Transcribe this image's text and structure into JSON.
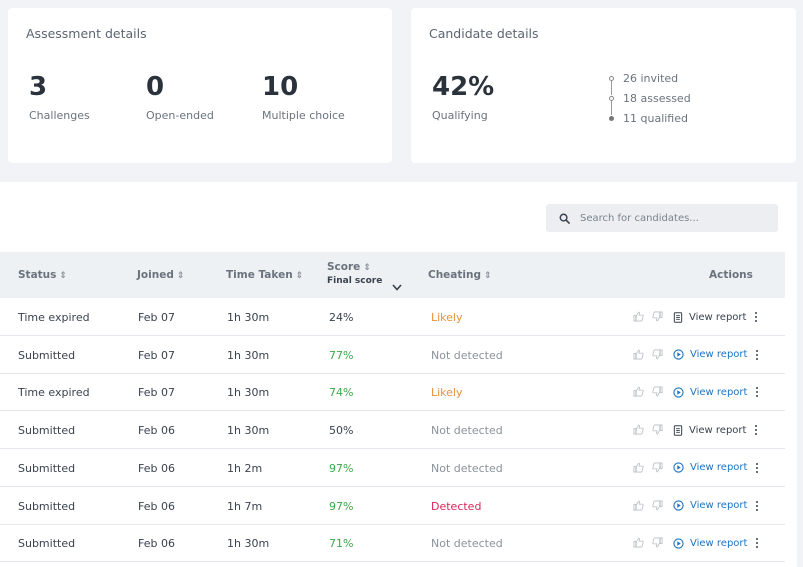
{
  "assessment": {
    "title": "Assessment details",
    "stats": [
      {
        "value": "3",
        "label": "Challenges"
      },
      {
        "value": "0",
        "label": "Open-ended"
      },
      {
        "value": "10",
        "label": "Multiple choice"
      }
    ]
  },
  "candidate": {
    "title": "Candidate details",
    "percent": "42%",
    "percent_label": "Qualifying",
    "funnel": [
      "26 invited",
      "18 assessed",
      "11 qualified"
    ]
  },
  "search": {
    "placeholder": "Search for candidates..."
  },
  "table": {
    "headers": {
      "status": "Status",
      "joined": "Joined",
      "time_taken": "Time Taken",
      "score": "Score",
      "score_sub": "Final score",
      "cheating": "Cheating",
      "actions": "Actions"
    },
    "rows": [
      {
        "status": "Time expired",
        "joined": "Feb 07",
        "time": "1h 30m",
        "score": "24%",
        "cheating": "Likely",
        "report": "View report",
        "report_icon": "document-icon"
      },
      {
        "status": "Submitted",
        "joined": "Feb 07",
        "time": "1h 30m",
        "score": "77%",
        "cheating": "Not detected",
        "report": "View report",
        "report_icon": "play-icon"
      },
      {
        "status": "Time expired",
        "joined": "Feb 07",
        "time": "1h 30m",
        "score": "74%",
        "cheating": "Likely",
        "report": "View report",
        "report_icon": "play-icon"
      },
      {
        "status": "Submitted",
        "joined": "Feb 06",
        "time": "1h 30m",
        "score": "50%",
        "cheating": "Not detected",
        "report": "View report",
        "report_icon": "document-icon"
      },
      {
        "status": "Submitted",
        "joined": "Feb 06",
        "time": "1h 2m",
        "score": "97%",
        "cheating": "Not detected",
        "report": "View report",
        "report_icon": "play-icon"
      },
      {
        "status": "Submitted",
        "joined": "Feb 06",
        "time": "1h 7m",
        "score": "97%",
        "cheating": "Detected",
        "report": "View report",
        "report_icon": "play-icon"
      },
      {
        "status": "Submitted",
        "joined": "Feb 06",
        "time": "1h 30m",
        "score": "71%",
        "cheating": "Not detected",
        "report": "View report",
        "report_icon": "play-icon"
      }
    ]
  },
  "colors": {
    "score_good": "#3aa847",
    "score_neutral": "#39424e",
    "likely": "#e8903a",
    "not_detected": "#8a929b",
    "detected": "#d8265a",
    "link": "#1c74c4"
  }
}
